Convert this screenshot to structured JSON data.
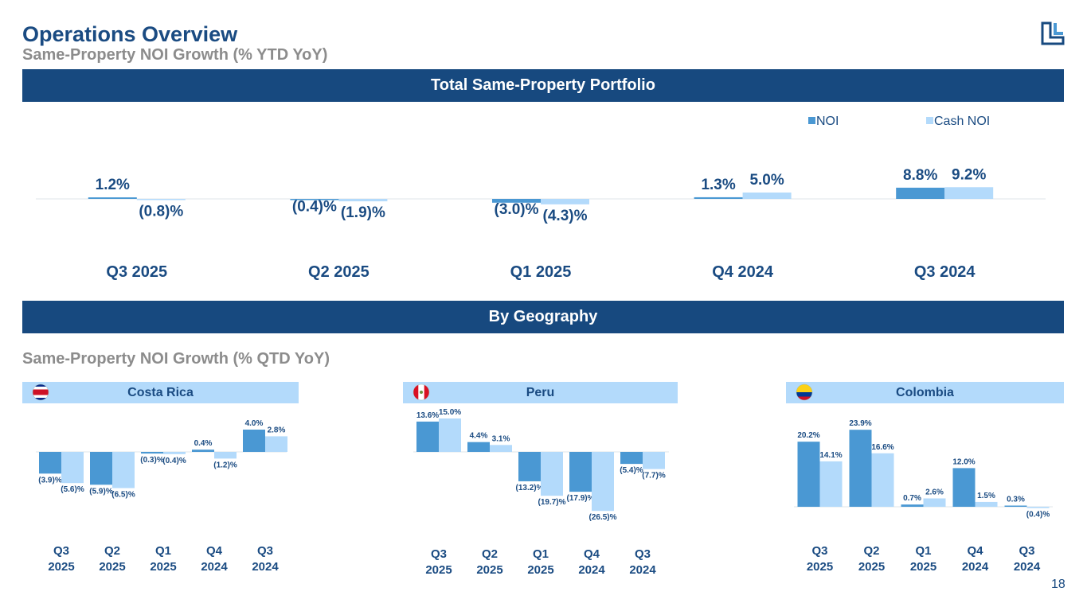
{
  "header": {
    "title": "Operations Overview",
    "subtitle": "Same-Property NOI Growth (% YTD YoY)"
  },
  "total_section": {
    "band_label": "Total Same-Property Portfolio"
  },
  "geography_section": {
    "band_label": "By Geography",
    "subtitle": "Same-Property NOI Growth (% QTD YoY)"
  },
  "page_number": "18",
  "colors": {
    "navy": "#17497f",
    "noi": "#4a98d3",
    "cash_noi": "#b3dafb",
    "title": "#1a4b82",
    "subtitle": "#8c8c8c"
  },
  "chart_data": [
    {
      "id": "total",
      "type": "bar",
      "title": "Total Same-Property Portfolio",
      "categories": [
        "Q3 2025",
        "Q2 2025",
        "Q1 2025",
        "Q4 2024",
        "Q3 2024"
      ],
      "series": [
        {
          "name": "NOI",
          "values": [
            1.2,
            -0.4,
            -3.0,
            1.3,
            8.8
          ],
          "labels": [
            "1.2%",
            "(0.4)%",
            "(3.0)%",
            "1.3%",
            "8.8%"
          ]
        },
        {
          "name": "Cash NOI",
          "values": [
            -0.8,
            -1.9,
            -4.3,
            5.0,
            9.2
          ],
          "labels": [
            "(0.8)%",
            "(1.9)%",
            "(4.3)%",
            "5.0%",
            "9.2%"
          ]
        }
      ],
      "legend": "top-right",
      "legend_labels": [
        "NOI",
        "Cash NOI"
      ]
    },
    {
      "id": "costa-rica",
      "type": "bar",
      "title": "Costa Rica",
      "categories": [
        "Q3 2025",
        "Q2 2025",
        "Q1 2025",
        "Q4 2024",
        "Q3 2024"
      ],
      "category_lines": [
        [
          "Q3",
          "2025"
        ],
        [
          "Q2",
          "2025"
        ],
        [
          "Q1",
          "2025"
        ],
        [
          "Q4",
          "2024"
        ],
        [
          "Q3",
          "2024"
        ]
      ],
      "series": [
        {
          "name": "NOI",
          "values": [
            -3.9,
            -5.9,
            -0.3,
            0.4,
            4.0
          ],
          "labels": [
            "(3.9)%",
            "(5.9)%",
            "(0.3)%",
            "0.4%",
            "4.0%"
          ]
        },
        {
          "name": "Cash NOI",
          "values": [
            -5.6,
            -6.5,
            -0.4,
            -1.2,
            2.8
          ],
          "labels": [
            "(5.6)%",
            "(6.5)%",
            "(0.4)%",
            "(1.2)%",
            "2.8%"
          ]
        }
      ]
    },
    {
      "id": "peru",
      "type": "bar",
      "title": "Peru",
      "categories": [
        "Q3 2025",
        "Q2 2025",
        "Q1 2025",
        "Q4 2024",
        "Q3 2024"
      ],
      "category_lines": [
        [
          "Q3",
          "2025"
        ],
        [
          "Q2",
          "2025"
        ],
        [
          "Q1",
          "2025"
        ],
        [
          "Q4",
          "2024"
        ],
        [
          "Q3",
          "2024"
        ]
      ],
      "series": [
        {
          "name": "NOI",
          "values": [
            13.6,
            4.4,
            -13.2,
            -17.9,
            -5.4
          ],
          "labels": [
            "13.6%",
            "4.4%",
            "(13.2)%",
            "(17.9)%",
            "(5.4)%"
          ]
        },
        {
          "name": "Cash NOI",
          "values": [
            15.0,
            3.1,
            -19.7,
            -26.5,
            -7.7
          ],
          "labels": [
            "15.0%",
            "3.1%",
            "(19.7)%",
            "(26.5)%",
            "(7.7)%"
          ]
        }
      ]
    },
    {
      "id": "colombia",
      "type": "bar",
      "title": "Colombia",
      "categories": [
        "Q3 2025",
        "Q2 2025",
        "Q1 2025",
        "Q4 2024",
        "Q3 2024"
      ],
      "category_lines": [
        [
          "Q3",
          "2025"
        ],
        [
          "Q2",
          "2025"
        ],
        [
          "Q1",
          "2025"
        ],
        [
          "Q4",
          "2024"
        ],
        [
          "Q3",
          "2024"
        ]
      ],
      "series": [
        {
          "name": "NOI",
          "values": [
            20.2,
            23.9,
            0.7,
            12.0,
            0.3
          ],
          "labels": [
            "20.2%",
            "23.9%",
            "0.7%",
            "12.0%",
            "0.3%"
          ]
        },
        {
          "name": "Cash NOI",
          "values": [
            14.1,
            16.6,
            2.6,
            1.5,
            -0.4
          ],
          "labels": [
            "14.1%",
            "16.6%",
            "2.6%",
            "1.5%",
            "(0.4)%"
          ]
        }
      ]
    }
  ]
}
